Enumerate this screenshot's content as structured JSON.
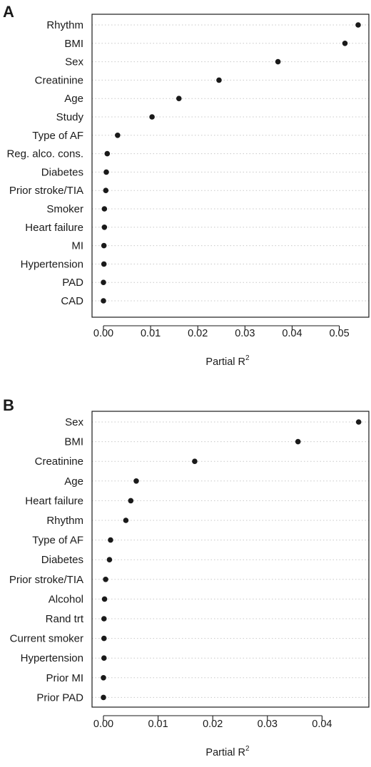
{
  "chart_data": [
    {
      "type": "scatter",
      "panel": "A",
      "xlabel": "Partial R",
      "xlabel_sup": "2",
      "xlim": [
        0,
        0.054
      ],
      "xticks": [
        0.0,
        0.01,
        0.02,
        0.03,
        0.04,
        0.05
      ],
      "xtick_labels": [
        "0.00",
        "0.01",
        "0.02",
        "0.03",
        "0.04",
        "0.05"
      ],
      "categories": [
        "Rhythm",
        "BMI",
        "Sex",
        "Creatinine",
        "Age",
        "Study",
        "Type of AF",
        "Reg. alco. cons.",
        "Diabetes",
        "Prior stroke/TIA",
        "Smoker",
        "Heart failure",
        "MI",
        "Hypertension",
        "PAD",
        "CAD"
      ],
      "values": [
        0.054,
        0.0512,
        0.037,
        0.0245,
        0.016,
        0.0103,
        0.003,
        0.0008,
        0.0006,
        0.0005,
        0.0002,
        0.0002,
        0.0001,
        0.0001,
        0.0,
        0.0
      ],
      "grid": "horizontal dotted"
    },
    {
      "type": "scatter",
      "panel": "B",
      "xlabel": "Partial R",
      "xlabel_sup": "2",
      "xlim": [
        0,
        0.047
      ],
      "xticks": [
        0.0,
        0.01,
        0.02,
        0.03,
        0.04
      ],
      "xtick_labels": [
        "0.00",
        "0.01",
        "0.02",
        "0.03",
        "0.04"
      ],
      "categories": [
        "Sex",
        "BMI",
        "Creatinine",
        "Age",
        "Heart failure",
        "Rhythm",
        "Type of AF",
        "Diabetes",
        "Prior stroke/TIA",
        "Alcohol",
        "Rand trt",
        "Current smoker",
        "Hypertension",
        "Prior MI",
        "Prior PAD"
      ],
      "values": [
        0.0467,
        0.0356,
        0.0167,
        0.006,
        0.005,
        0.0041,
        0.0013,
        0.0011,
        0.0004,
        0.0002,
        0.0001,
        0.0001,
        0.0001,
        0.0,
        0.0
      ],
      "grid": "horizontal dotted"
    }
  ]
}
